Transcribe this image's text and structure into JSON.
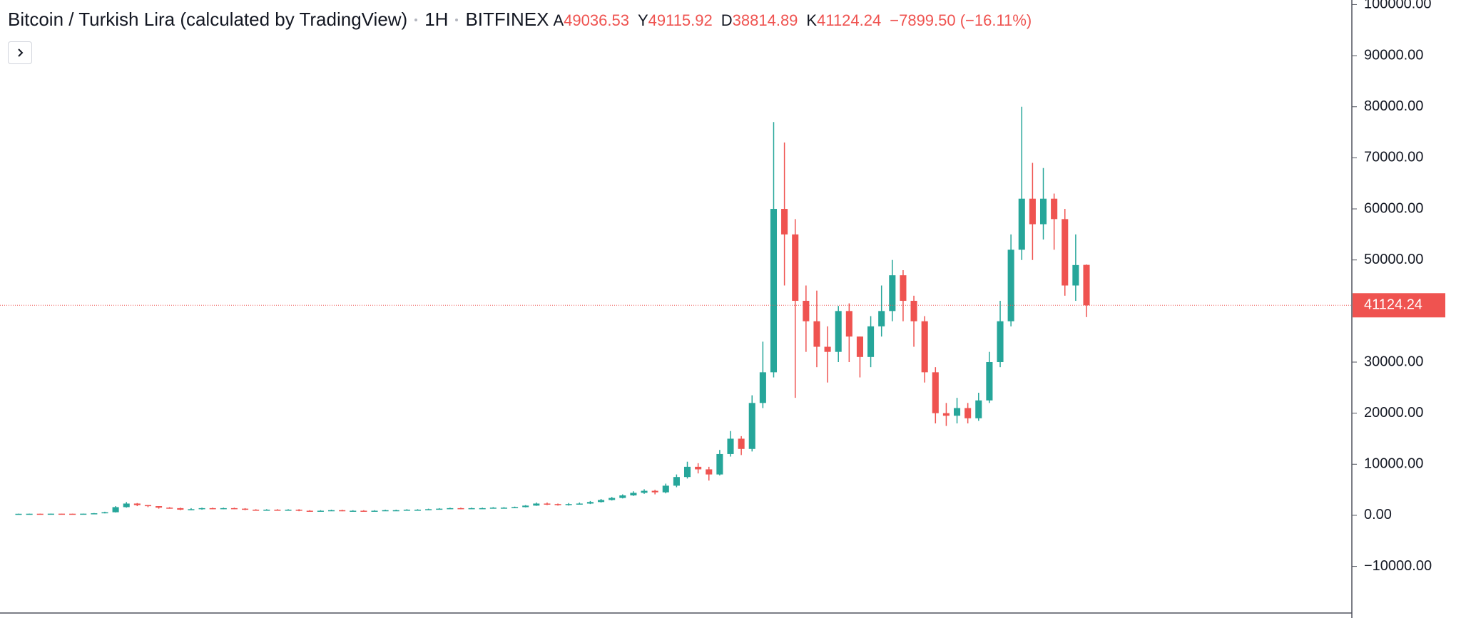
{
  "chart_data": {
    "type": "candlestick",
    "title": "Bitcoin / Turkish Lira (calculated by TradingView)",
    "interval": "1H",
    "exchange": "BITFINEX",
    "ohlc_labels": {
      "open": "A",
      "high": "Y",
      "low": "D",
      "close": "K"
    },
    "change": "−7899.50 (−16.11%)",
    "up_color": "#26a69a",
    "down_color": "#ef5350",
    "ylim": [
      -19130,
      100900
    ],
    "yticks": [
      {
        "value": 100000,
        "label": "100000.00"
      },
      {
        "value": 90000,
        "label": "90000.00"
      },
      {
        "value": 80000,
        "label": "80000.00"
      },
      {
        "value": 70000,
        "label": "70000.00"
      },
      {
        "value": 60000,
        "label": "60000.00"
      },
      {
        "value": 50000,
        "label": "50000.00"
      },
      {
        "value": 30000,
        "label": "30000.00"
      },
      {
        "value": 20000,
        "label": "20000.00"
      },
      {
        "value": 10000,
        "label": "10000.00"
      },
      {
        "value": 0,
        "label": "0.00"
      },
      {
        "value": -10000,
        "label": "−10000.00"
      }
    ],
    "open": [
      280,
      300,
      310,
      300,
      320,
      310,
      300,
      320,
      400,
      600,
      1600,
      2300,
      2000,
      1800,
      1500,
      1400,
      1100,
      1200,
      1400,
      1300,
      1400,
      1300,
      1100,
      1000,
      1100,
      1000,
      1100,
      900,
      800,
      900,
      1000,
      900,
      900,
      800,
      900,
      1000,
      1000,
      1100,
      1100,
      1200,
      1300,
      1400,
      1300,
      1400,
      1400,
      1500,
      1500,
      1600,
      1900,
      2300,
      2200,
      2000,
      2200,
      2300,
      2600,
      3000,
      3400,
      3900,
      4400,
      4800,
      4500,
      5800,
      7500,
      9500,
      9000,
      8000,
      12000,
      15000,
      13000,
      22000,
      28000,
      60000,
      55000,
      42000,
      38000,
      33000,
      32000,
      40000,
      35000,
      31000,
      37000,
      40000,
      47000,
      42000,
      38000,
      28000,
      20000,
      19500,
      21000,
      19000,
      22500,
      30000,
      38000,
      52000,
      62000,
      57000,
      62000,
      58000,
      45000,
      49036.53
    ],
    "high": [
      320,
      330,
      330,
      340,
      330,
      330,
      340,
      450,
      700,
      1800,
      2600,
      2400,
      2000,
      1800,
      1600,
      1500,
      1400,
      1500,
      1500,
      1500,
      1500,
      1400,
      1200,
      1200,
      1200,
      1200,
      1200,
      1000,
      1000,
      1100,
      1100,
      1000,
      1000,
      1000,
      1100,
      1100,
      1200,
      1200,
      1300,
      1400,
      1500,
      1500,
      1500,
      1500,
      1600,
      1600,
      1700,
      2000,
      2500,
      2500,
      2300,
      2400,
      2500,
      2800,
      3200,
      3600,
      4100,
      4700,
      5100,
      5000,
      6200,
      8000,
      10500,
      10200,
      9500,
      12800,
      16500,
      15500,
      23500,
      34000,
      77000,
      73000,
      58000,
      45000,
      44000,
      37000,
      41000,
      41500,
      35000,
      39000,
      45000,
      50000,
      48000,
      43000,
      39000,
      29000,
      22000,
      23000,
      22000,
      24000,
      32000,
      42000,
      55000,
      80000,
      69000,
      68000,
      63000,
      60000,
      55000,
      49115.92
    ],
    "low": [
      250,
      280,
      280,
      280,
      290,
      280,
      280,
      300,
      380,
      550,
      1500,
      1800,
      1600,
      1300,
      1300,
      1000,
      1000,
      1100,
      1200,
      1200,
      1200,
      1000,
      900,
      950,
      900,
      950,
      800,
      700,
      750,
      850,
      800,
      800,
      700,
      750,
      850,
      900,
      950,
      1000,
      1050,
      1150,
      1250,
      1200,
      1250,
      1300,
      1350,
      1400,
      1450,
      1550,
      1850,
      2000,
      1900,
      1900,
      2100,
      2200,
      2500,
      2900,
      3300,
      3800,
      4200,
      4100,
      4300,
      5500,
      7200,
      8200,
      6800,
      7800,
      11500,
      11800,
      12500,
      21000,
      27000,
      45000,
      23000,
      32000,
      29000,
      26000,
      30000,
      30000,
      27000,
      29000,
      35000,
      38000,
      38000,
      33000,
      26000,
      18000,
      17500,
      18000,
      18000,
      18500,
      22000,
      29000,
      37000,
      50000,
      50000,
      54000,
      52000,
      43000,
      42000,
      38814.89
    ],
    "close": [
      300,
      310,
      300,
      320,
      310,
      300,
      320,
      400,
      600,
      1600,
      2300,
      2000,
      1800,
      1500,
      1400,
      1100,
      1200,
      1400,
      1300,
      1400,
      1300,
      1100,
      1000,
      1100,
      1000,
      1100,
      900,
      800,
      900,
      1000,
      900,
      900,
      800,
      900,
      1000,
      1000,
      1100,
      1100,
      1200,
      1300,
      1400,
      1300,
      1400,
      1400,
      1500,
      1500,
      1600,
      1900,
      2300,
      2200,
      2000,
      2200,
      2300,
      2600,
      3000,
      3400,
      3900,
      4400,
      4800,
      4500,
      5800,
      7500,
      9500,
      9000,
      8000,
      12000,
      15000,
      13000,
      22000,
      28000,
      60000,
      55000,
      42000,
      38000,
      33000,
      32000,
      40000,
      35000,
      31000,
      37000,
      40000,
      47000,
      42000,
      38000,
      28000,
      20000,
      19500,
      21000,
      19000,
      22500,
      30000,
      38000,
      52000,
      62000,
      57000,
      62000,
      58000,
      45000,
      49000,
      41124.24
    ]
  }
}
